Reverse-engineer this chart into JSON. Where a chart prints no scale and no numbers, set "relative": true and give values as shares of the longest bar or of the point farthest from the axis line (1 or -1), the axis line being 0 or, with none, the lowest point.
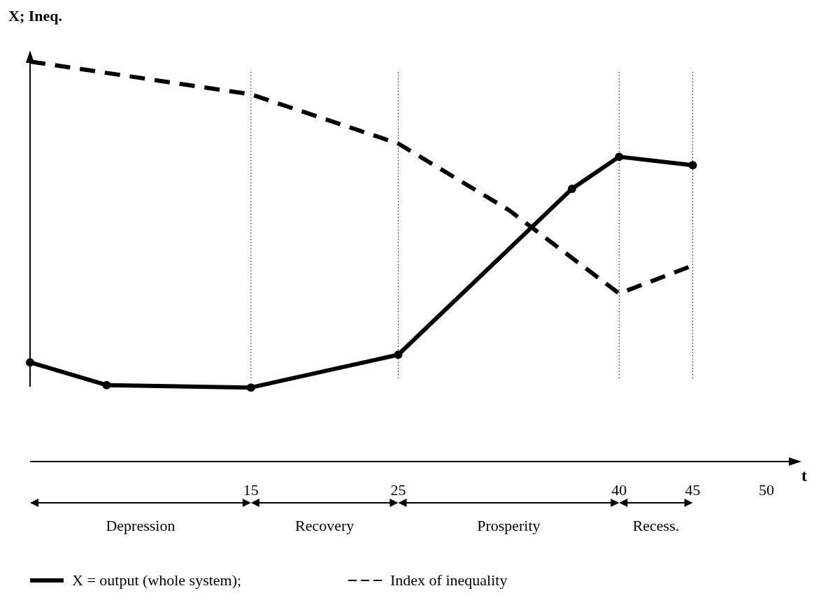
{
  "chart_data": {
    "type": "line",
    "relative": true,
    "ylabel": "X; Ineq.",
    "xlabel": "t",
    "xlim": [
      0,
      52
    ],
    "xticks": [
      15,
      25,
      40,
      45,
      50
    ],
    "legend": "bottom",
    "series": [
      {
        "name": "X = output (whole system);",
        "color": "#000000",
        "line_style": "solid",
        "marker": "circle",
        "x": [
          0,
          5.2,
          15,
          25,
          36.8,
          40,
          45
        ],
        "values": [
          0.248,
          0.191,
          0.185,
          0.267,
          0.682,
          0.762,
          0.741
        ]
      },
      {
        "name": "Index of inequality",
        "color": "#000000",
        "line_style": "dashed",
        "marker": "none",
        "x": [
          0,
          15,
          25,
          32.5,
          40,
          45
        ],
        "values": [
          1.0,
          0.918,
          0.795,
          0.629,
          0.42,
          0.49
        ]
      }
    ],
    "ref_lines": [
      {
        "axis": "x",
        "value": 15,
        "line_style": "dotted"
      },
      {
        "axis": "x",
        "value": 25,
        "line_style": "dotted"
      },
      {
        "axis": "x",
        "value": 40,
        "line_style": "dotted"
      },
      {
        "axis": "x",
        "value": 45,
        "line_style": "dotted"
      }
    ],
    "annotations": [
      "Depression",
      "Recovery",
      "Prosperity",
      "Recess."
    ]
  }
}
